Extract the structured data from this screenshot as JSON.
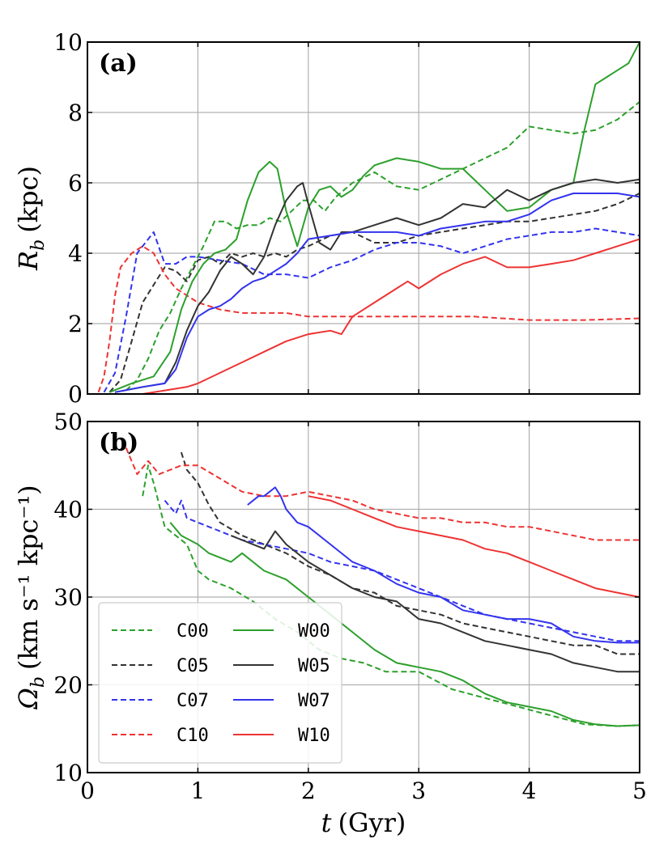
{
  "chart_data": [
    {
      "type": "line",
      "panel_tag": "(a)",
      "xlabel": "t (Gyr)",
      "ylabel": "R_b (kpc)",
      "ylabel_main": "R",
      "ylabel_sub": "b",
      "ylabel_unit": "(kpc)",
      "xlim": [
        0,
        5
      ],
      "ylim": [
        0,
        10
      ],
      "xticks": [
        0,
        1,
        2,
        3,
        4,
        5
      ],
      "xtick_labels": [
        "",
        "",
        "",
        "",
        "",
        ""
      ],
      "yticks": [
        0,
        2,
        4,
        6,
        8,
        10
      ],
      "ytick_labels": [
        "0",
        "2",
        "4",
        "6",
        "8",
        "10"
      ],
      "grid": true,
      "series": [
        {
          "name": "C00",
          "color": "#2ca02c",
          "dashed": true,
          "x": [
            0.35,
            0.45,
            0.55,
            0.65,
            0.75,
            0.85,
            0.95,
            1.05,
            1.15,
            1.25,
            1.35,
            1.45,
            1.55,
            1.65,
            1.75,
            1.85,
            1.95,
            2.05,
            2.15,
            2.25,
            2.4,
            2.6,
            2.8,
            3.0,
            3.2,
            3.4,
            3.6,
            3.8,
            4.0,
            4.2,
            4.4,
            4.6,
            4.8,
            5.0
          ],
          "y": [
            0.1,
            0.4,
            1.0,
            1.8,
            2.3,
            3.0,
            3.6,
            4.2,
            4.9,
            4.9,
            4.7,
            4.8,
            4.8,
            5.0,
            4.9,
            5.2,
            5.5,
            5.5,
            5.2,
            5.6,
            6.0,
            6.3,
            5.9,
            5.8,
            6.1,
            6.4,
            6.7,
            7.0,
            7.6,
            7.5,
            7.4,
            7.5,
            7.8,
            8.3
          ]
        },
        {
          "name": "C05",
          "color": "#333333",
          "dashed": true,
          "x": [
            0.2,
            0.3,
            0.4,
            0.5,
            0.6,
            0.7,
            0.8,
            0.9,
            1.0,
            1.1,
            1.2,
            1.3,
            1.4,
            1.5,
            1.6,
            1.7,
            1.8,
            1.9,
            2.0,
            2.2,
            2.4,
            2.6,
            2.8,
            3.0,
            3.2,
            3.4,
            3.6,
            3.8,
            4.0,
            4.2,
            4.4,
            4.6,
            4.8,
            5.0
          ],
          "y": [
            0.05,
            0.4,
            1.5,
            2.6,
            3.1,
            3.6,
            3.5,
            3.2,
            3.8,
            3.9,
            3.7,
            4.0,
            3.9,
            4.0,
            3.9,
            4.0,
            3.9,
            4.1,
            4.2,
            4.5,
            4.6,
            4.3,
            4.3,
            4.5,
            4.6,
            4.7,
            4.8,
            4.9,
            4.9,
            5.0,
            5.1,
            5.2,
            5.4,
            5.7
          ]
        },
        {
          "name": "C07",
          "color": "#3333ee",
          "dashed": true,
          "x": [
            0.15,
            0.25,
            0.35,
            0.45,
            0.55,
            0.6,
            0.7,
            0.8,
            0.9,
            1.0,
            1.2,
            1.4,
            1.6,
            1.8,
            2.0,
            2.2,
            2.4,
            2.6,
            2.8,
            3.0,
            3.2,
            3.4,
            3.6,
            3.8,
            4.0,
            4.2,
            4.4,
            4.6,
            4.8,
            5.0
          ],
          "y": [
            0.05,
            0.6,
            2.2,
            4.0,
            4.4,
            4.6,
            3.7,
            3.7,
            3.9,
            3.9,
            3.8,
            3.7,
            3.4,
            3.4,
            3.3,
            3.6,
            3.8,
            4.1,
            4.3,
            4.3,
            4.2,
            4.0,
            4.2,
            4.4,
            4.5,
            4.6,
            4.6,
            4.7,
            4.6,
            4.5
          ]
        },
        {
          "name": "C10",
          "color": "#ee3333",
          "dashed": true,
          "x": [
            0.1,
            0.15,
            0.2,
            0.25,
            0.3,
            0.4,
            0.5,
            0.6,
            0.7,
            0.8,
            0.9,
            1.0,
            1.2,
            1.4,
            1.6,
            1.8,
            2.0,
            2.5,
            3.0,
            3.5,
            4.0,
            4.5,
            5.0
          ],
          "y": [
            0.05,
            0.5,
            1.5,
            2.8,
            3.6,
            4.0,
            4.2,
            4.0,
            3.4,
            3.0,
            2.8,
            2.6,
            2.4,
            2.3,
            2.3,
            2.3,
            2.2,
            2.2,
            2.2,
            2.2,
            2.1,
            2.1,
            2.15
          ]
        },
        {
          "name": "W00",
          "color": "#2ca02c",
          "dashed": false,
          "x": [
            0.2,
            0.4,
            0.6,
            0.75,
            0.85,
            0.95,
            1.05,
            1.15,
            1.25,
            1.35,
            1.45,
            1.55,
            1.65,
            1.72,
            1.8,
            1.9,
            2.0,
            2.1,
            2.2,
            2.3,
            2.4,
            2.5,
            2.6,
            2.8,
            3.0,
            3.2,
            3.4,
            3.6,
            3.8,
            4.0,
            4.2,
            4.4,
            4.5,
            4.6,
            4.7,
            4.8,
            4.9,
            5.0
          ],
          "y": [
            0.05,
            0.3,
            0.5,
            1.2,
            2.4,
            3.2,
            3.7,
            4.0,
            4.1,
            4.4,
            5.5,
            6.3,
            6.6,
            6.4,
            5.2,
            4.2,
            5.3,
            5.8,
            5.9,
            5.6,
            5.8,
            6.2,
            6.5,
            6.7,
            6.6,
            6.4,
            6.4,
            5.8,
            5.2,
            5.3,
            5.8,
            6.0,
            7.5,
            8.8,
            9.0,
            9.2,
            9.4,
            10.0
          ]
        },
        {
          "name": "W05",
          "color": "#333333",
          "dashed": false,
          "x": [
            0.25,
            0.5,
            0.7,
            0.8,
            0.9,
            1.0,
            1.1,
            1.2,
            1.3,
            1.4,
            1.5,
            1.6,
            1.7,
            1.8,
            1.9,
            1.95,
            2.0,
            2.1,
            2.2,
            2.3,
            2.4,
            2.6,
            2.8,
            3.0,
            3.2,
            3.4,
            3.6,
            3.8,
            4.0,
            4.2,
            4.4,
            4.6,
            4.8,
            5.0
          ],
          "y": [
            0.05,
            0.2,
            0.3,
            0.9,
            1.8,
            2.5,
            2.9,
            3.5,
            3.9,
            3.7,
            3.4,
            3.9,
            4.8,
            5.5,
            5.9,
            6.0,
            5.4,
            4.3,
            4.1,
            4.6,
            4.6,
            4.8,
            5.0,
            4.8,
            5.0,
            5.4,
            5.3,
            5.8,
            5.5,
            5.8,
            6.0,
            6.1,
            6.0,
            6.1
          ]
        },
        {
          "name": "W07",
          "color": "#3333ee",
          "dashed": false,
          "x": [
            0.25,
            0.5,
            0.7,
            0.8,
            0.9,
            1.0,
            1.1,
            1.2,
            1.3,
            1.4,
            1.5,
            1.6,
            1.7,
            1.8,
            1.9,
            2.0,
            2.2,
            2.4,
            2.6,
            2.8,
            3.0,
            3.2,
            3.4,
            3.6,
            3.8,
            4.0,
            4.2,
            4.4,
            4.6,
            4.8,
            5.0
          ],
          "y": [
            0.05,
            0.2,
            0.3,
            0.7,
            1.6,
            2.2,
            2.4,
            2.5,
            2.7,
            3.0,
            3.2,
            3.3,
            3.5,
            3.7,
            4.0,
            4.4,
            4.5,
            4.6,
            4.6,
            4.6,
            4.5,
            4.7,
            4.8,
            4.9,
            4.9,
            5.1,
            5.5,
            5.7,
            5.7,
            5.7,
            5.6
          ]
        },
        {
          "name": "W10",
          "color": "#ee3333",
          "dashed": false,
          "x": [
            0.5,
            0.7,
            0.9,
            1.0,
            1.2,
            1.4,
            1.6,
            1.8,
            2.0,
            2.2,
            2.3,
            2.4,
            2.6,
            2.8,
            2.9,
            3.0,
            3.2,
            3.4,
            3.6,
            3.8,
            4.0,
            4.2,
            4.4,
            4.6,
            4.8,
            5.0
          ],
          "y": [
            0.0,
            0.1,
            0.2,
            0.3,
            0.6,
            0.9,
            1.2,
            1.5,
            1.7,
            1.8,
            1.7,
            2.2,
            2.6,
            3.0,
            3.2,
            3.0,
            3.4,
            3.7,
            3.9,
            3.6,
            3.6,
            3.7,
            3.8,
            4.0,
            4.2,
            4.4
          ]
        }
      ]
    },
    {
      "type": "line",
      "panel_tag": "(b)",
      "xlabel": "t (Gyr)",
      "ylabel": "Ω_b (km s^-1 kpc^-1)",
      "ylabel_main": "Ω",
      "ylabel_sub": "b",
      "ylabel_unit": "(km s⁻¹ kpc⁻¹)",
      "xlim": [
        0,
        5
      ],
      "ylim": [
        10,
        50
      ],
      "xticks": [
        0,
        1,
        2,
        3,
        4,
        5
      ],
      "xtick_labels": [
        "0",
        "1",
        "2",
        "3",
        "4",
        "5"
      ],
      "yticks": [
        10,
        20,
        30,
        40,
        50
      ],
      "ytick_labels": [
        "10",
        "20",
        "30",
        "40",
        "50"
      ],
      "grid": true,
      "legend": {
        "location": "lower-left",
        "columns": 2,
        "entries": [
          "C00",
          "C05",
          "C07",
          "C10",
          "W00",
          "W05",
          "W07",
          "W10"
        ]
      },
      "series": [
        {
          "name": "C00",
          "color": "#2ca02c",
          "dashed": true,
          "x": [
            0.5,
            0.55,
            0.6,
            0.7,
            0.8,
            0.9,
            1.0,
            1.1,
            1.3,
            1.5,
            1.7,
            1.9,
            2.1,
            2.3,
            2.5,
            2.7,
            3.0,
            3.3,
            3.6,
            3.9,
            4.2,
            4.5,
            4.8,
            5.0
          ],
          "y": [
            41.5,
            45.0,
            43.0,
            38.0,
            37.0,
            36.0,
            33.0,
            32.0,
            31.0,
            29.5,
            27.5,
            26.0,
            24.0,
            23.0,
            22.5,
            21.5,
            21.5,
            19.5,
            18.5,
            17.5,
            16.5,
            15.5,
            15.3,
            15.4
          ]
        },
        {
          "name": "C05",
          "color": "#333333",
          "dashed": true,
          "x": [
            0.85,
            0.9,
            1.0,
            1.1,
            1.2,
            1.4,
            1.6,
            1.8,
            2.0,
            2.2,
            2.4,
            2.6,
            2.8,
            3.0,
            3.2,
            3.4,
            3.6,
            3.8,
            4.0,
            4.2,
            4.4,
            4.6,
            4.8,
            5.0
          ],
          "y": [
            46.5,
            44.5,
            43.0,
            40.5,
            38.5,
            37.0,
            36.0,
            35.0,
            33.5,
            32.5,
            31.0,
            30.5,
            29.0,
            28.5,
            28.0,
            27.0,
            26.5,
            26.0,
            25.5,
            25.0,
            24.5,
            24.5,
            23.5,
            23.5
          ]
        },
        {
          "name": "C07",
          "color": "#3333ee",
          "dashed": true,
          "x": [
            0.7,
            0.8,
            0.85,
            0.9,
            1.0,
            1.2,
            1.4,
            1.6,
            1.8,
            2.0,
            2.2,
            2.4,
            2.6,
            2.8,
            3.0,
            3.2,
            3.4,
            3.6,
            3.8,
            4.0,
            4.2,
            4.4,
            4.6,
            4.8,
            5.0
          ],
          "y": [
            41.0,
            39.5,
            41.0,
            39.0,
            38.5,
            37.5,
            36.5,
            36.0,
            35.5,
            35.0,
            34.0,
            33.5,
            33.0,
            32.0,
            31.0,
            30.0,
            29.0,
            28.0,
            27.5,
            27.0,
            26.5,
            26.0,
            25.5,
            25.0,
            25.0
          ]
        },
        {
          "name": "C10",
          "color": "#ee3333",
          "dashed": true,
          "x": [
            0.35,
            0.45,
            0.55,
            0.65,
            0.75,
            0.85,
            1.0,
            1.2,
            1.4,
            1.6,
            1.8,
            2.0,
            2.2,
            2.4,
            2.6,
            2.8,
            3.0,
            3.2,
            3.4,
            3.6,
            3.8,
            4.0,
            4.2,
            4.4,
            4.6,
            4.8,
            5.0
          ],
          "y": [
            47.0,
            44.0,
            45.5,
            44.0,
            44.5,
            45.0,
            45.0,
            43.5,
            42.0,
            41.5,
            41.5,
            42.0,
            41.5,
            41.0,
            40.0,
            39.5,
            39.0,
            39.0,
            38.5,
            38.5,
            38.0,
            38.0,
            37.5,
            37.0,
            36.5,
            36.5,
            36.5
          ]
        },
        {
          "name": "W00",
          "color": "#2ca02c",
          "dashed": false,
          "x": [
            0.75,
            0.85,
            1.0,
            1.1,
            1.2,
            1.3,
            1.4,
            1.6,
            1.8,
            2.0,
            2.2,
            2.4,
            2.6,
            2.8,
            3.0,
            3.2,
            3.4,
            3.6,
            3.8,
            4.0,
            4.2,
            4.4,
            4.6,
            4.8,
            5.0
          ],
          "y": [
            38.5,
            37.0,
            36.0,
            35.0,
            34.5,
            34.0,
            35.0,
            33.0,
            32.0,
            30.0,
            28.0,
            26.0,
            24.0,
            22.5,
            22.0,
            21.5,
            20.5,
            19.0,
            18.0,
            17.5,
            17.0,
            16.0,
            15.5,
            15.3,
            15.4
          ]
        },
        {
          "name": "W05",
          "color": "#333333",
          "dashed": false,
          "x": [
            1.3,
            1.4,
            1.5,
            1.6,
            1.7,
            1.8,
            2.0,
            2.2,
            2.4,
            2.6,
            2.8,
            3.0,
            3.2,
            3.4,
            3.6,
            3.8,
            4.0,
            4.2,
            4.4,
            4.6,
            4.8,
            5.0
          ],
          "y": [
            37.0,
            36.5,
            36.0,
            35.5,
            37.5,
            36.0,
            34.0,
            32.5,
            31.0,
            30.0,
            29.5,
            27.5,
            27.0,
            26.0,
            25.0,
            24.5,
            24.0,
            23.5,
            22.5,
            22.0,
            21.5,
            21.5
          ]
        },
        {
          "name": "W07",
          "color": "#3333ee",
          "dashed": false,
          "x": [
            1.45,
            1.55,
            1.6,
            1.7,
            1.75,
            1.8,
            1.9,
            2.0,
            2.2,
            2.4,
            2.6,
            2.8,
            3.0,
            3.2,
            3.4,
            3.6,
            3.8,
            4.0,
            4.2,
            4.4,
            4.6,
            4.8,
            5.0
          ],
          "y": [
            40.5,
            41.5,
            41.5,
            42.5,
            41.5,
            40.0,
            38.5,
            38.0,
            36.0,
            34.0,
            33.0,
            31.5,
            30.5,
            30.0,
            28.5,
            28.0,
            27.5,
            27.5,
            27.0,
            25.5,
            25.0,
            24.8,
            24.8
          ]
        },
        {
          "name": "W10",
          "color": "#ee3333",
          "dashed": false,
          "x": [
            2.0,
            2.2,
            2.4,
            2.6,
            2.8,
            3.0,
            3.2,
            3.4,
            3.6,
            3.8,
            4.0,
            4.2,
            4.4,
            4.6,
            4.8,
            5.0
          ],
          "y": [
            41.5,
            41.0,
            40.0,
            39.0,
            38.0,
            37.5,
            37.0,
            36.5,
            35.5,
            35.0,
            34.0,
            33.0,
            32.0,
            31.0,
            30.5,
            30.0
          ]
        }
      ]
    }
  ]
}
